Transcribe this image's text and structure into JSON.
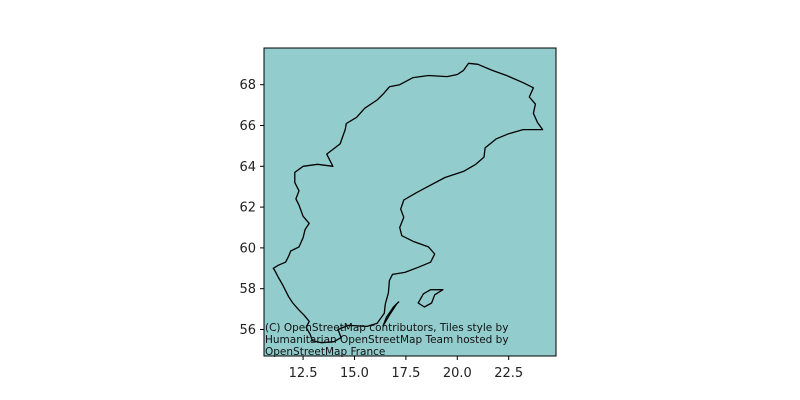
{
  "map": {
    "extent": {
      "lon": [
        10.6,
        24.8
      ],
      "lat": [
        54.7,
        69.8
      ]
    },
    "water_color": "#92cccc",
    "outline_color": "#000000",
    "axes": {
      "x_ticks": [
        {
          "value": 12.5,
          "label": "12.5"
        },
        {
          "value": 15.0,
          "label": "15.0"
        },
        {
          "value": 17.5,
          "label": "17.5"
        },
        {
          "value": 20.0,
          "label": "20.0"
        },
        {
          "value": 22.5,
          "label": "22.5"
        }
      ],
      "y_ticks": [
        {
          "value": 56,
          "label": "56"
        },
        {
          "value": 58,
          "label": "58"
        },
        {
          "value": 60,
          "label": "60"
        },
        {
          "value": 62,
          "label": "62"
        },
        {
          "value": 64,
          "label": "64"
        },
        {
          "value": 66,
          "label": "66"
        },
        {
          "value": 68,
          "label": "68"
        }
      ]
    },
    "attribution": {
      "line1": "(C) OpenStreetMap contributors, Tiles style by",
      "line2": "Humanitarian OpenStreetMap Team hosted by",
      "line3": "OpenStreetMap France"
    },
    "regions": [
      {
        "name": "sweden-mainland-outline",
        "coords": [
          [
            11.05,
            59.0
          ],
          [
            11.15,
            58.85
          ],
          [
            11.3,
            58.55
          ],
          [
            11.5,
            58.2
          ],
          [
            11.65,
            57.9
          ],
          [
            11.8,
            57.6
          ],
          [
            12.0,
            57.3
          ],
          [
            12.3,
            56.95
          ],
          [
            12.55,
            56.7
          ],
          [
            12.8,
            56.4
          ],
          [
            12.65,
            56.1
          ],
          [
            12.85,
            55.75
          ],
          [
            12.95,
            55.45
          ],
          [
            13.4,
            55.35
          ],
          [
            14.0,
            55.4
          ],
          [
            14.35,
            55.6
          ],
          [
            14.2,
            56.0
          ],
          [
            14.7,
            56.2
          ],
          [
            15.6,
            56.15
          ],
          [
            16.1,
            56.3
          ],
          [
            16.45,
            56.8
          ],
          [
            16.5,
            57.25
          ],
          [
            16.65,
            57.8
          ],
          [
            16.7,
            58.4
          ],
          [
            16.85,
            58.7
          ],
          [
            17.45,
            58.8
          ],
          [
            18.1,
            59.05
          ],
          [
            18.7,
            59.3
          ],
          [
            18.9,
            59.7
          ],
          [
            18.6,
            60.05
          ],
          [
            17.9,
            60.3
          ],
          [
            17.3,
            60.6
          ],
          [
            17.2,
            61.0
          ],
          [
            17.4,
            61.5
          ],
          [
            17.25,
            61.9
          ],
          [
            17.4,
            62.35
          ],
          [
            18.0,
            62.7
          ],
          [
            18.65,
            63.05
          ],
          [
            19.4,
            63.45
          ],
          [
            20.3,
            63.75
          ],
          [
            20.9,
            64.1
          ],
          [
            21.3,
            64.45
          ],
          [
            21.35,
            64.9
          ],
          [
            21.9,
            65.35
          ],
          [
            22.5,
            65.6
          ],
          [
            23.2,
            65.8
          ],
          [
            24.15,
            65.8
          ],
          [
            23.9,
            66.15
          ],
          [
            23.7,
            66.6
          ],
          [
            23.8,
            67.05
          ],
          [
            23.5,
            67.4
          ],
          [
            23.7,
            67.85
          ],
          [
            23.2,
            68.1
          ],
          [
            22.4,
            68.45
          ],
          [
            21.7,
            68.7
          ],
          [
            21.0,
            69.0
          ],
          [
            20.55,
            69.05
          ],
          [
            20.3,
            68.7
          ],
          [
            20.0,
            68.5
          ],
          [
            19.5,
            68.4
          ],
          [
            18.6,
            68.45
          ],
          [
            17.85,
            68.35
          ],
          [
            17.2,
            68.0
          ],
          [
            16.7,
            67.9
          ],
          [
            16.4,
            67.55
          ],
          [
            16.1,
            67.25
          ],
          [
            15.5,
            66.85
          ],
          [
            15.1,
            66.4
          ],
          [
            14.6,
            66.1
          ],
          [
            14.55,
            65.8
          ],
          [
            14.3,
            65.1
          ],
          [
            13.65,
            64.6
          ],
          [
            13.95,
            64.0
          ],
          [
            13.2,
            64.1
          ],
          [
            12.5,
            64.0
          ],
          [
            12.1,
            63.7
          ],
          [
            12.1,
            63.2
          ],
          [
            12.3,
            62.8
          ],
          [
            12.15,
            62.4
          ],
          [
            12.3,
            62.1
          ],
          [
            12.5,
            61.55
          ],
          [
            12.8,
            61.2
          ],
          [
            12.6,
            60.9
          ],
          [
            12.5,
            60.5
          ],
          [
            12.3,
            60.05
          ],
          [
            11.9,
            59.85
          ],
          [
            11.8,
            59.6
          ],
          [
            11.65,
            59.3
          ],
          [
            11.3,
            59.15
          ],
          [
            11.05,
            59.0
          ]
        ]
      },
      {
        "name": "oland-island-outline",
        "coords": [
          [
            16.4,
            56.2
          ],
          [
            16.7,
            56.7
          ],
          [
            17.05,
            57.25
          ],
          [
            17.15,
            57.35
          ],
          [
            16.9,
            57.1
          ],
          [
            16.55,
            56.6
          ],
          [
            16.4,
            56.2
          ]
        ]
      },
      {
        "name": "gotland-island-outline",
        "coords": [
          [
            18.1,
            57.3
          ],
          [
            18.35,
            57.75
          ],
          [
            18.7,
            57.95
          ],
          [
            19.3,
            57.95
          ],
          [
            18.9,
            57.7
          ],
          [
            18.75,
            57.3
          ],
          [
            18.4,
            57.1
          ],
          [
            18.1,
            57.3
          ]
        ]
      }
    ]
  }
}
